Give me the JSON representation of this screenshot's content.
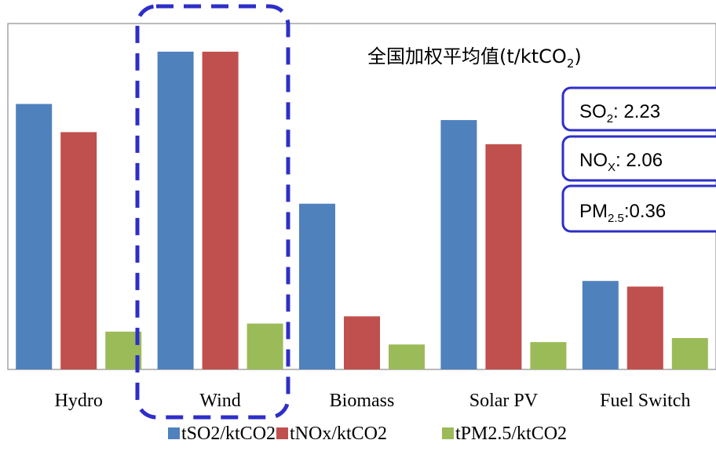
{
  "chart_data": {
    "type": "bar",
    "categories": [
      "Hydro",
      "Wind",
      "Biomass",
      "Solar PV",
      "Fuel Switch"
    ],
    "series": [
      {
        "name": "tSO2/ktCO2",
        "color": "#4f81bd",
        "values": [
          3.3,
          3.95,
          2.06,
          3.1,
          1.1
        ]
      },
      {
        "name": "tNOx/ktCO2",
        "color": "#c0504d",
        "values": [
          2.95,
          3.95,
          0.66,
          2.8,
          1.03
        ]
      },
      {
        "name": "tPM2.5/ktCO2",
        "color": "#9bbb59",
        "values": [
          0.47,
          0.57,
          0.31,
          0.34,
          0.39
        ]
      }
    ],
    "ylim": [
      0,
      4.3
    ],
    "grid": false,
    "legend_position": "bottom"
  },
  "annotation": {
    "title_main": "全国加权平均值(t/ktCO",
    "title_sub": "2",
    "title_close": ")",
    "boxes": [
      {
        "label": "SO",
        "sub": "2",
        "suffix": ":   2.23"
      },
      {
        "label": "NO",
        "sub": "X",
        "suffix": ":  2.06"
      },
      {
        "label": "PM",
        "sub": "2.5",
        "suffix": ":0.36"
      }
    ],
    "frame_color": "#2e2ec8"
  }
}
